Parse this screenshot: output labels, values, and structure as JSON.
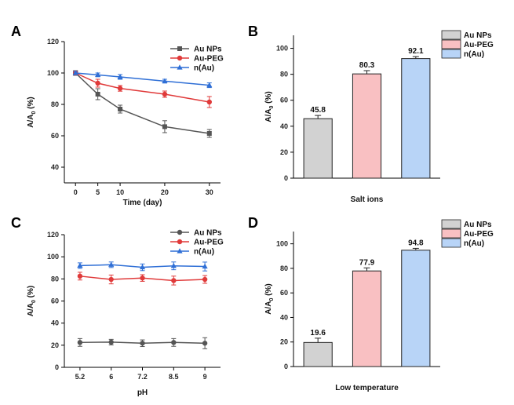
{
  "chart_data": [
    {
      "panel": "A",
      "type": "line",
      "xlabel": "Time (day)",
      "ylabel": "A/A0 (%)",
      "ylabel_parts": {
        "main": "A/A",
        "sub": "0",
        "unit": " (%)"
      },
      "categories": [
        "0",
        "5",
        "10",
        "20",
        "30"
      ],
      "x": [
        0,
        5,
        10,
        20,
        30
      ],
      "xlim": [
        -2.5,
        32.5
      ],
      "ylim": [
        30,
        120
      ],
      "yticks": [
        "40",
        "60",
        "80",
        "100",
        "120"
      ],
      "legend_position": "top-right",
      "series": [
        {
          "name": "Au NPs",
          "color": "#555555",
          "marker": "square",
          "values": [
            100,
            86.5,
            77,
            65.8,
            61.5
          ],
          "errors": [
            1.5,
            3.5,
            2.5,
            3.8,
            2.5
          ]
        },
        {
          "name": "Au-PEG",
          "color": "#e03a3a",
          "marker": "circle",
          "values": [
            100,
            93.5,
            90.2,
            86.5,
            81.5
          ],
          "errors": [
            1.2,
            2.5,
            1.8,
            2.0,
            3.5
          ]
        },
        {
          "name": "n(Au)",
          "color": "#2f6fd6",
          "marker": "triangle",
          "values": [
            100,
            98.8,
            97.5,
            94.8,
            92.2
          ],
          "errors": [
            1.0,
            1.2,
            1.5,
            1.2,
            1.5
          ]
        }
      ]
    },
    {
      "panel": "B",
      "type": "bar",
      "xlabel": "Salt ions",
      "ylabel": "A/A0 (%)",
      "ylabel_parts": {
        "main": "A/A",
        "sub": "0",
        "unit": " (%)"
      },
      "ylim": [
        0,
        110
      ],
      "yticks": [
        "0",
        "20",
        "40",
        "60",
        "80",
        "100"
      ],
      "legend_position": "top-right",
      "series": [
        {
          "name": "Au NPs",
          "color": "#d2d2d2",
          "value": 45.8,
          "label": "45.8",
          "error": 2.5
        },
        {
          "name": "Au-PEG",
          "color": "#f9c0c2",
          "value": 80.3,
          "label": "80.3",
          "error": 2.5
        },
        {
          "name": "n(Au)",
          "color": "#b8d4f7",
          "value": 92.1,
          "label": "92.1",
          "error": 1.5
        }
      ]
    },
    {
      "panel": "C",
      "type": "line",
      "xlabel": "pH",
      "ylabel": "A/A0 (%)",
      "ylabel_parts": {
        "main": "A/A",
        "sub": "0",
        "unit": " (%)"
      },
      "categories": [
        "5.2",
        "6",
        "7.2",
        "8.5",
        "9"
      ],
      "ylim": [
        0,
        120
      ],
      "yticks": [
        "0",
        "20",
        "40",
        "60",
        "80",
        "100",
        "120"
      ],
      "legend_position": "top-right",
      "series": [
        {
          "name": "Au NPs",
          "color": "#555555",
          "marker": "circle",
          "values": [
            22.5,
            22.8,
            21.8,
            22.5,
            21.8
          ],
          "errors": [
            3.5,
            2.5,
            3.0,
            3.5,
            5.0
          ]
        },
        {
          "name": "Au-PEG",
          "color": "#e03a3a",
          "marker": "circle",
          "values": [
            82.5,
            79.5,
            80.8,
            78.5,
            79.5
          ],
          "errors": [
            3.5,
            4.0,
            3.0,
            4.0,
            3.5
          ]
        },
        {
          "name": "n(Au)",
          "color": "#2f6fd6",
          "marker": "triangle",
          "values": [
            92,
            92.8,
            90.5,
            91.8,
            91.2
          ],
          "errors": [
            2.5,
            2.5,
            3.0,
            3.5,
            4.0
          ]
        }
      ]
    },
    {
      "panel": "D",
      "type": "bar",
      "xlabel": "Low temperature",
      "ylabel": "A/A0 (%)",
      "ylabel_parts": {
        "main": "A/A",
        "sub": "0",
        "unit": " (%)"
      },
      "ylim": [
        0,
        110
      ],
      "yticks": [
        "0",
        "20",
        "40",
        "60",
        "80",
        "100"
      ],
      "legend_position": "top-right",
      "series": [
        {
          "name": "Au NPs",
          "color": "#d2d2d2",
          "value": 19.6,
          "label": "19.6",
          "error": 3.5
        },
        {
          "name": "Au-PEG",
          "color": "#f9c0c2",
          "value": 77.9,
          "label": "77.9",
          "error": 2.5
        },
        {
          "name": "n(Au)",
          "color": "#b8d4f7",
          "value": 94.8,
          "label": "94.8",
          "error": 1.5
        }
      ]
    }
  ]
}
